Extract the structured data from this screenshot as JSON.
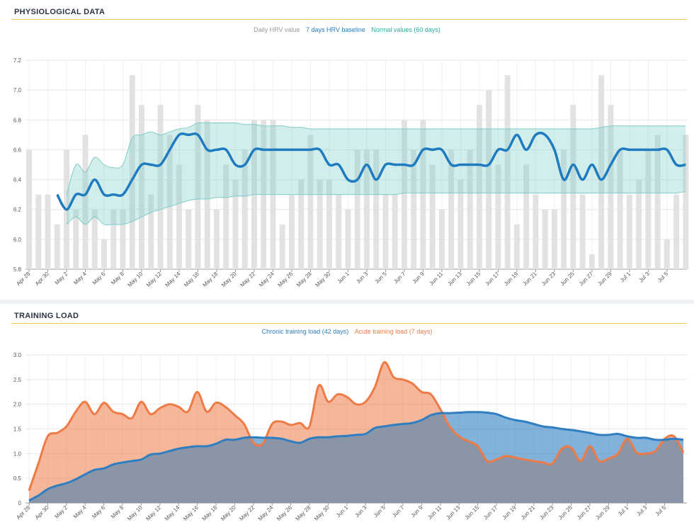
{
  "panels": {
    "hrv": {
      "title": "PHYSIOLOGICAL DATA",
      "legend": {
        "daily": "Daily HRV value",
        "baseline": "7 days HRV baseline",
        "normal": "Normal values (60 days)"
      }
    },
    "load": {
      "title": "TRAINING LOAD",
      "legend": {
        "chronic": "Chronic training load (42 days)",
        "acute": "Acute training load (7 days)"
      }
    }
  },
  "colors": {
    "daily_bar": "#e2e2e2",
    "baseline": "#1f7bbf",
    "normal_band": "#7fcdc8",
    "chronic": "#2f7ec2",
    "acute": "#ee7a45",
    "overlap": "#8a96a8",
    "title_rule": "#f2c94c"
  },
  "chart_data": [
    {
      "type": "bar",
      "title": "PHYSIOLOGICAL DATA",
      "x_tick_labels": [
        "Apr 28",
        "Apr 30",
        "May 2",
        "May 4",
        "May 6",
        "May 8",
        "May 10",
        "May 12",
        "May 14",
        "May 16",
        "May 18",
        "May 20",
        "May 22",
        "May 24",
        "May 26",
        "May 28",
        "May 30",
        "Jun 1",
        "Jun 3",
        "Jun 5",
        "Jun 7",
        "Jun 9",
        "Jun 11",
        "Jun 13",
        "Jun 15",
        "Jun 17",
        "Jun 19",
        "Jun 21",
        "Jun 23",
        "Jun 25",
        "Jun 27",
        "Jun 29",
        "Jul 1",
        "Jul 3",
        "Jul 5"
      ],
      "ylim": [
        5.8,
        7.2
      ],
      "yticks": [
        "5.8",
        "6.0",
        "6.2",
        "6.4",
        "6.6",
        "6.8",
        "7.0",
        "7.2"
      ],
      "series": [
        {
          "name": "Daily HRV value",
          "type": "bar",
          "values": [
            6.6,
            6.3,
            6.3,
            6.1,
            6.6,
            6.2,
            6.7,
            6.2,
            6.0,
            6.2,
            6.2,
            7.1,
            6.9,
            6.3,
            6.9,
            6.7,
            6.5,
            6.2,
            6.9,
            6.8,
            6.2,
            6.5,
            6.4,
            6.6,
            6.8,
            6.8,
            6.8,
            6.1,
            6.3,
            6.4,
            6.7,
            6.4,
            6.4,
            6.3,
            6.2,
            6.6,
            6.6,
            6.6,
            6.3,
            6.3,
            6.8,
            6.6,
            6.8,
            6.5,
            6.2,
            6.6,
            6.4,
            6.6,
            6.9,
            7.0,
            6.5,
            7.1,
            6.1,
            6.5,
            6.3,
            6.2,
            6.2,
            6.6,
            6.9,
            6.3,
            5.9,
            7.1,
            6.9,
            6.6,
            6.3,
            6.4,
            6.6,
            6.7,
            6.0,
            6.3,
            6.7
          ]
        },
        {
          "name": "7 days HRV baseline",
          "type": "line",
          "values": [
            null,
            null,
            null,
            6.3,
            6.2,
            6.3,
            6.3,
            6.4,
            6.3,
            6.3,
            6.3,
            6.4,
            6.5,
            6.5,
            6.5,
            6.6,
            6.7,
            6.7,
            6.7,
            6.6,
            6.6,
            6.6,
            6.5,
            6.5,
            6.6,
            6.6,
            6.6,
            6.6,
            6.6,
            6.6,
            6.6,
            6.6,
            6.5,
            6.5,
            6.4,
            6.4,
            6.5,
            6.4,
            6.5,
            6.5,
            6.5,
            6.5,
            6.6,
            6.6,
            6.6,
            6.5,
            6.5,
            6.5,
            6.5,
            6.5,
            6.6,
            6.6,
            6.7,
            6.6,
            6.7,
            6.7,
            6.6,
            6.4,
            6.5,
            6.4,
            6.5,
            6.4,
            6.5,
            6.6,
            6.6,
            6.6,
            6.6,
            6.6,
            6.6,
            6.5,
            6.5
          ]
        },
        {
          "name": "Normal values (60 days) upper",
          "type": "band",
          "values": [
            null,
            null,
            null,
            null,
            6.3,
            6.5,
            6.45,
            6.55,
            6.5,
            6.48,
            6.5,
            6.68,
            6.7,
            6.72,
            6.7,
            6.72,
            6.74,
            6.75,
            6.78,
            6.78,
            6.78,
            6.78,
            6.78,
            6.77,
            6.77,
            6.76,
            6.76,
            6.76,
            6.75,
            6.75,
            6.74,
            6.74,
            6.74,
            6.74,
            6.74,
            6.74,
            6.74,
            6.74,
            6.74,
            6.74,
            6.74,
            6.74,
            6.74,
            6.74,
            6.74,
            6.74,
            6.74,
            6.74,
            6.74,
            6.74,
            6.74,
            6.74,
            6.74,
            6.74,
            6.74,
            6.74,
            6.74,
            6.74,
            6.74,
            6.74,
            6.74,
            6.75,
            6.76,
            6.76,
            6.76,
            6.76,
            6.76,
            6.76,
            6.76,
            6.76,
            6.76
          ]
        },
        {
          "name": "Normal values (60 days) lower",
          "type": "band",
          "values": [
            null,
            null,
            null,
            null,
            6.1,
            6.15,
            6.1,
            6.15,
            6.1,
            6.1,
            6.1,
            6.12,
            6.15,
            6.18,
            6.2,
            6.22,
            6.24,
            6.26,
            6.27,
            6.27,
            6.28,
            6.28,
            6.29,
            6.29,
            6.3,
            6.3,
            6.3,
            6.3,
            6.3,
            6.3,
            6.3,
            6.3,
            6.3,
            6.3,
            6.3,
            6.3,
            6.3,
            6.3,
            6.3,
            6.3,
            6.31,
            6.31,
            6.31,
            6.31,
            6.31,
            6.31,
            6.31,
            6.31,
            6.31,
            6.31,
            6.31,
            6.31,
            6.31,
            6.31,
            6.31,
            6.31,
            6.31,
            6.31,
            6.31,
            6.31,
            6.31,
            6.31,
            6.31,
            6.31,
            6.31,
            6.31,
            6.31,
            6.31,
            6.31,
            6.31,
            6.32
          ]
        }
      ]
    },
    {
      "type": "area",
      "title": "TRAINING LOAD",
      "x_tick_labels": [
        "Apr 28",
        "Apr 30",
        "May 2",
        "May 4",
        "May 6",
        "May 8",
        "May 10",
        "May 12",
        "May 14",
        "May 16",
        "May 18",
        "May 20",
        "May 22",
        "May 24",
        "May 26",
        "May 28",
        "May 30",
        "Jun 1",
        "Jun 3",
        "Jun 5",
        "Jun 7",
        "Jun 9",
        "Jun 11",
        "Jun 13",
        "Jun 15",
        "Jun 17",
        "Jun 19",
        "Jun 21",
        "Jun 23",
        "Jun 25",
        "Jun 27",
        "Jun 29",
        "Jul 1",
        "Jul 3",
        "Jul 5"
      ],
      "ylim": [
        0,
        3.0
      ],
      "yticks": [
        "0",
        "0.5",
        "1.0",
        "1.5",
        "2.0",
        "2.5",
        "3.0"
      ],
      "series": [
        {
          "name": "Chronic training load (42 days)",
          "values": [
            0.05,
            0.15,
            0.28,
            0.35,
            0.4,
            0.48,
            0.58,
            0.67,
            0.7,
            0.78,
            0.82,
            0.85,
            0.88,
            0.98,
            1.0,
            1.05,
            1.1,
            1.13,
            1.15,
            1.15,
            1.2,
            1.28,
            1.28,
            1.32,
            1.33,
            1.32,
            1.32,
            1.3,
            1.25,
            1.22,
            1.3,
            1.33,
            1.33,
            1.35,
            1.36,
            1.38,
            1.4,
            1.52,
            1.55,
            1.58,
            1.6,
            1.62,
            1.68,
            1.78,
            1.82,
            1.82,
            1.83,
            1.84,
            1.84,
            1.83,
            1.8,
            1.73,
            1.68,
            1.65,
            1.6,
            1.55,
            1.53,
            1.5,
            1.48,
            1.45,
            1.42,
            1.38,
            1.38,
            1.4,
            1.35,
            1.32,
            1.32,
            1.28,
            1.28,
            1.3,
            1.28
          ]
        },
        {
          "name": "Acute training load (7 days)",
          "values": [
            0.25,
            0.8,
            1.35,
            1.42,
            1.55,
            1.85,
            2.05,
            1.8,
            2.03,
            1.85,
            1.8,
            1.72,
            2.05,
            1.8,
            1.92,
            2.0,
            1.95,
            1.85,
            2.25,
            1.85,
            2.03,
            1.95,
            1.78,
            1.6,
            1.22,
            1.2,
            1.6,
            1.65,
            1.58,
            1.62,
            1.55,
            2.38,
            2.05,
            2.2,
            2.15,
            2.0,
            2.05,
            2.35,
            2.85,
            2.55,
            2.5,
            2.42,
            2.25,
            2.2,
            1.9,
            1.55,
            1.35,
            1.25,
            1.15,
            0.85,
            0.88,
            0.95,
            0.92,
            0.88,
            0.85,
            0.82,
            0.8,
            1.1,
            1.12,
            0.85,
            1.15,
            0.85,
            0.9,
            1.0,
            1.3,
            1.02,
            1.0,
            1.05,
            1.3,
            1.35,
            1.02
          ]
        }
      ]
    }
  ]
}
